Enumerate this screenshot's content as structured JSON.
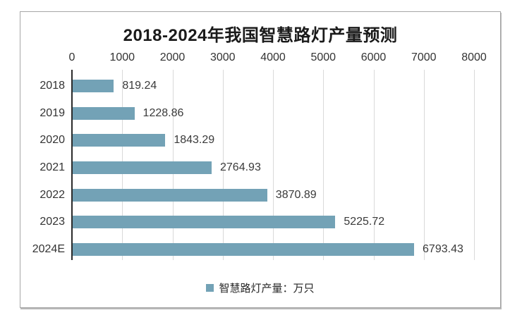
{
  "window": {
    "background": "#ffffff",
    "frame_border_color": "#a6a6a6"
  },
  "chart_data": {
    "type": "bar",
    "orientation": "horizontal",
    "title": "2018-2024年我国智慧路灯产量预测",
    "categories": [
      "2018",
      "2019",
      "2020",
      "2021",
      "2022",
      "2023",
      "2024E"
    ],
    "series": [
      {
        "name": "智慧路灯产量：万只",
        "values": [
          819.24,
          1228.86,
          1843.29,
          2764.93,
          3870.89,
          5225.72,
          6793.43
        ]
      }
    ],
    "value_labels": [
      "819.24",
      "1228.86",
      "1843.29",
      "2764.93",
      "3870.89",
      "5225.72",
      "6793.43"
    ],
    "xlabel": "",
    "ylabel": "",
    "xlim": [
      0,
      8000
    ],
    "x_ticks": [
      "0",
      "1000",
      "2000",
      "3000",
      "4000",
      "5000",
      "6000",
      "7000",
      "8000"
    ],
    "grid": "vertical-gridlines-on",
    "legend_position": "bottom",
    "colors": {
      "bar": "#73A2B6",
      "gridline": "#D9D9D9",
      "axis_line": "#2b2b2b",
      "title_text": "#1a1a1a",
      "label_text": "#333333"
    }
  },
  "legend": {
    "label": "智慧路灯产量：万只"
  }
}
